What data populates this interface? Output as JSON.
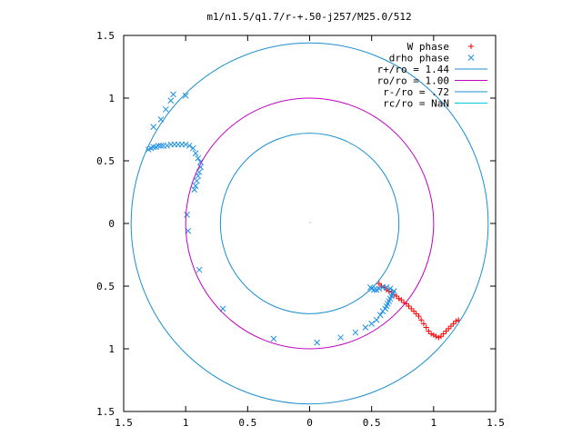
{
  "chart_data": {
    "type": "scatter",
    "title": "m1/n1.5/q1.7/r-+.50-j257/M25.0/512",
    "xlim": [
      -1.5,
      1.5
    ],
    "ylim": [
      -1.5,
      1.5
    ],
    "x_ticks": [
      -1.5,
      -1,
      -0.5,
      0,
      0.5,
      1,
      1.5
    ],
    "x_tick_labels": [
      "1.5",
      "1",
      "0.5",
      "0",
      "0.5",
      "1",
      "1.5"
    ],
    "y_ticks": [
      1.5,
      1,
      0.5,
      0,
      -0.5,
      -1,
      -1.5
    ],
    "y_tick_labels": [
      "1.5",
      "1",
      "0.5",
      "0",
      "0.5",
      "1",
      "1.5"
    ],
    "grid": false,
    "legend_position": "top-right",
    "series": [
      {
        "name": "W phase",
        "kind": "points",
        "marker": "plus",
        "color": "#ff0000",
        "x": [
          0.56,
          0.58,
          0.6,
          0.62,
          0.64,
          0.66,
          0.68,
          0.7,
          0.72,
          0.74,
          0.76,
          0.78,
          0.8,
          0.82,
          0.84,
          0.86,
          0.88,
          0.9,
          0.92,
          0.94,
          0.96,
          0.98,
          1.0,
          1.02,
          1.04,
          1.06,
          1.08,
          1.1,
          1.12,
          1.14,
          1.16,
          1.18,
          1.2
        ],
        "y": [
          -0.48,
          -0.5,
          -0.51,
          -0.53,
          -0.54,
          -0.55,
          -0.57,
          -0.58,
          -0.6,
          -0.61,
          -0.63,
          -0.64,
          -0.66,
          -0.68,
          -0.7,
          -0.72,
          -0.74,
          -0.77,
          -0.8,
          -0.83,
          -0.86,
          -0.88,
          -0.89,
          -0.9,
          -0.91,
          -0.9,
          -0.88,
          -0.86,
          -0.84,
          -0.82,
          -0.8,
          -0.78,
          -0.77
        ]
      },
      {
        "name": "drho phase",
        "kind": "points",
        "marker": "cross",
        "color": "#1e90e6",
        "x": [
          -1.3,
          -1.28,
          -1.26,
          -1.24,
          -1.22,
          -1.2,
          -1.18,
          -1.15,
          -1.12,
          -1.09,
          -1.06,
          -1.03,
          -1.0,
          -0.97,
          -0.94,
          -0.92,
          -0.9,
          -0.88,
          -0.88,
          -0.89,
          -0.9,
          -0.91,
          -0.92,
          -0.93,
          -1.26,
          -1.2,
          -1.16,
          -1.12,
          -1.1,
          -1.0,
          -0.99,
          -0.98,
          -0.89,
          -0.7,
          -0.29,
          0.06,
          0.25,
          0.37,
          0.45,
          0.5,
          0.54,
          0.57,
          0.59,
          0.61,
          0.62,
          0.63,
          0.64,
          0.65,
          0.66,
          0.67,
          0.68,
          0.65,
          0.62,
          0.59,
          0.56,
          0.54,
          0.52,
          0.5,
          0.49
        ],
        "y": [
          0.59,
          0.6,
          0.61,
          0.61,
          0.62,
          0.62,
          0.62,
          0.62,
          0.63,
          0.63,
          0.63,
          0.63,
          0.63,
          0.62,
          0.6,
          0.56,
          0.52,
          0.49,
          0.45,
          0.41,
          0.38,
          0.34,
          0.3,
          0.27,
          0.77,
          0.83,
          0.91,
          0.98,
          1.03,
          1.02,
          0.07,
          -0.06,
          -0.37,
          -0.68,
          -0.92,
          -0.95,
          -0.91,
          -0.87,
          -0.83,
          -0.8,
          -0.77,
          -0.73,
          -0.7,
          -0.68,
          -0.66,
          -0.64,
          -0.62,
          -0.6,
          -0.58,
          -0.56,
          -0.54,
          -0.52,
          -0.51,
          -0.51,
          -0.52,
          -0.53,
          -0.53,
          -0.52,
          -0.51
        ]
      },
      {
        "name": "r+/ro = 1.44",
        "kind": "circle",
        "radius": 1.44,
        "color": "#1a8fd0"
      },
      {
        "name": "ro/ro = 1.00",
        "kind": "circle",
        "radius": 1.0,
        "color": "#c000c0"
      },
      {
        "name": "r-/ro = .72",
        "kind": "circle",
        "radius": 0.72,
        "color": "#1a8fd0"
      },
      {
        "name": "rc/ro = NaN",
        "kind": "circle",
        "radius": null,
        "color": "#00c8d8"
      }
    ]
  }
}
